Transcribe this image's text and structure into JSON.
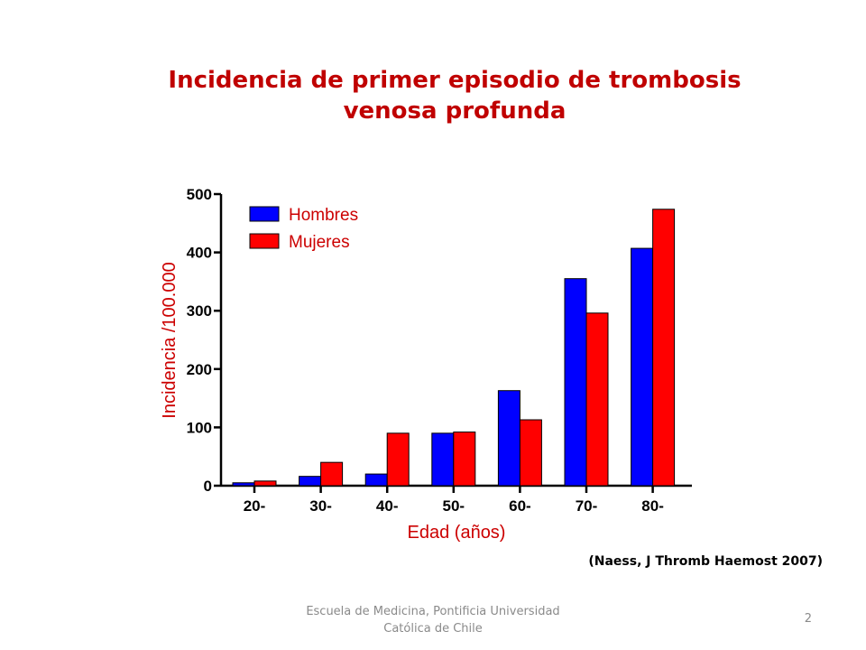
{
  "slide": {
    "title_line1": "Incidencia de primer episodio de trombosis",
    "title_line2": "venosa profunda",
    "citation": "(Naess, J Thromb Haemost 2007)",
    "footer_line1": "Escuela de Medicina, Pontificia Universidad",
    "footer_line2": "Católica de Chile",
    "page_number": "2"
  },
  "chart_data": {
    "type": "bar",
    "xlabel": "Edad (años)",
    "ylabel": "Incidencia /100.000",
    "ylim": [
      0,
      500
    ],
    "yticks": [
      "0",
      "100",
      "200",
      "300",
      "400",
      "500"
    ],
    "categories": [
      "20-",
      "30-",
      "40-",
      "50-",
      "60-",
      "70-",
      "80-"
    ],
    "series": [
      {
        "name": "Hombres",
        "color": "#0000ff",
        "values": [
          5,
          16,
          20,
          90,
          163,
          355,
          407
        ]
      },
      {
        "name": "Mujeres",
        "color": "#ff0000",
        "values": [
          8,
          40,
          90,
          92,
          113,
          296,
          474
        ]
      }
    ],
    "legend_position": "top-left",
    "label_color": "#cc0000",
    "grid": false
  }
}
